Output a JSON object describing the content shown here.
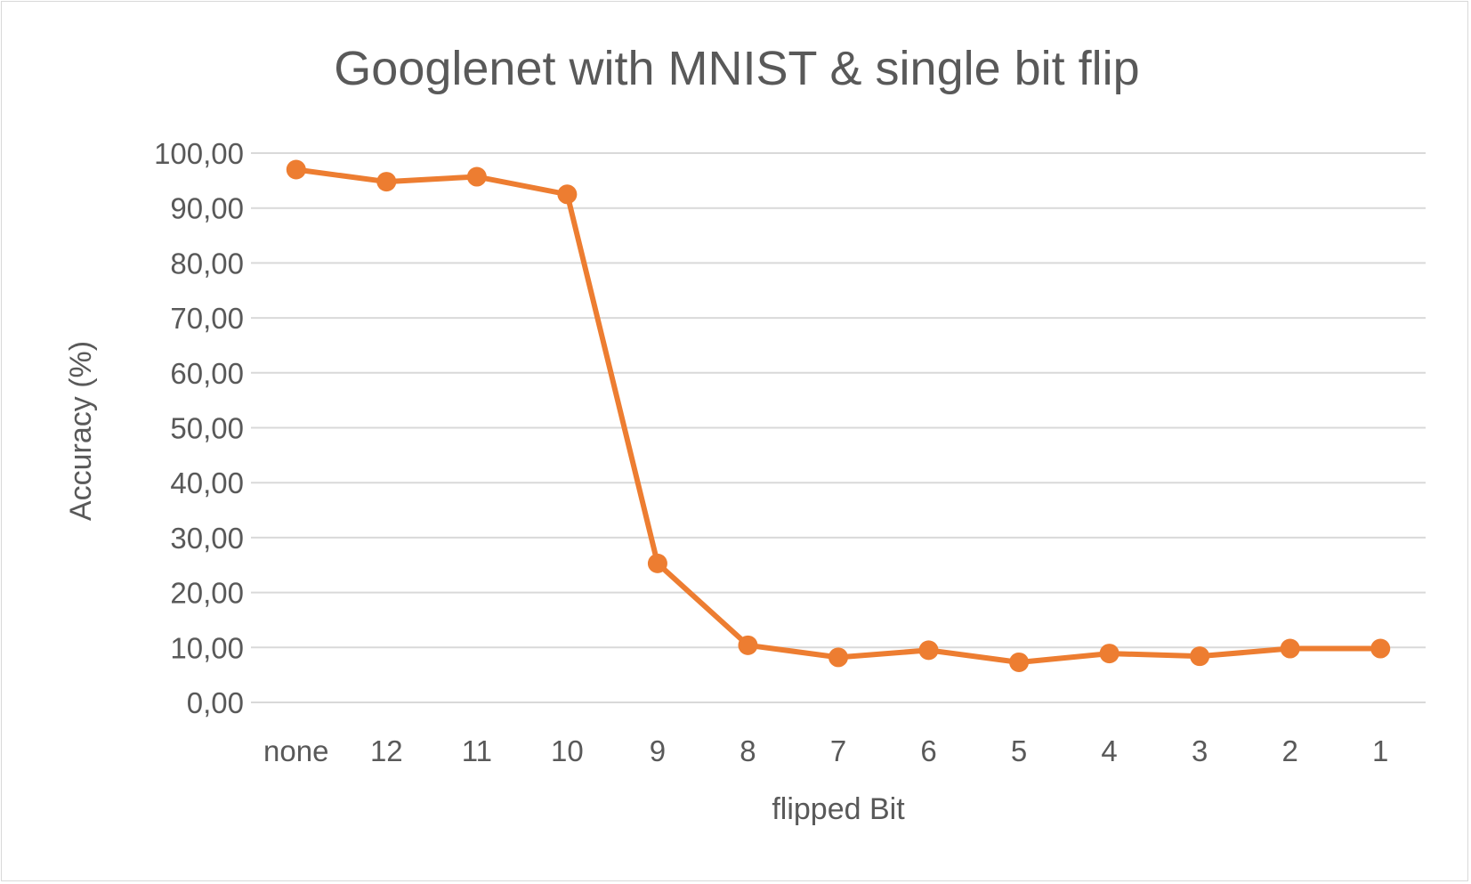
{
  "chart_data": {
    "type": "line",
    "title": "Googlenet with MNIST & single bit flip",
    "xlabel": "flipped Bit",
    "ylabel": "Accuracy (%)",
    "categories": [
      "none",
      "12",
      "11",
      "10",
      "9",
      "8",
      "7",
      "6",
      "5",
      "4",
      "3",
      "2",
      "1"
    ],
    "series": [
      {
        "values": [
          97.0,
          94.8,
          95.7,
          92.5,
          25.3,
          10.4,
          8.2,
          9.5,
          7.3,
          8.9,
          8.4,
          9.8,
          9.8
        ]
      }
    ],
    "ylim": [
      0,
      100
    ],
    "ystep": 10,
    "ytick_labels": [
      "0,00",
      "10,00",
      "20,00",
      "30,00",
      "40,00",
      "50,00",
      "60,00",
      "70,00",
      "80,00",
      "90,00",
      "100,00"
    ],
    "grid": true,
    "legend": "none",
    "colors": {
      "series": "#ED7D31",
      "grid": "#D9D9D9",
      "text": "#595959"
    }
  }
}
